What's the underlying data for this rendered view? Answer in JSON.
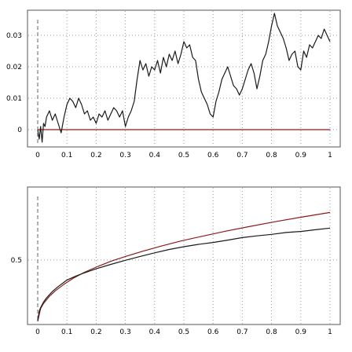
{
  "chart_data": [
    {
      "type": "line",
      "xlim": [
        0,
        1
      ],
      "ylim": [
        -0.0055,
        0.038
      ],
      "xticks": [
        0,
        0.1,
        0.2,
        0.3,
        0.4,
        0.5,
        0.6,
        0.7,
        0.8,
        0.9,
        1
      ],
      "xtick_labels": [
        "0",
        "0.1",
        "0.2",
        "0.3",
        "0.4",
        "0.5",
        "0.6",
        "0.7",
        "0.8",
        "0.9",
        "1"
      ],
      "yticks": [
        0,
        0.01,
        0.02,
        0.03
      ],
      "ytick_labels": [
        "0",
        "0.01",
        "0.02",
        "0.03"
      ],
      "grid": true,
      "colors": {
        "path": "#1a1a1a",
        "reference": "#8b1a1a",
        "grid": "#9a9a9a",
        "frame": "#555555"
      },
      "series": [
        {
          "x": [
            0,
            0.005,
            0.01,
            0.015,
            0.02,
            0.025,
            0.03,
            0.04,
            0.05,
            0.06,
            0.07,
            0.08,
            0.09,
            0.1,
            0.11,
            0.12,
            0.13,
            0.14,
            0.15,
            0.16,
            0.17,
            0.18,
            0.19,
            0.2,
            0.21,
            0.22,
            0.23,
            0.24,
            0.25,
            0.26,
            0.27,
            0.28,
            0.29,
            0.3,
            0.31,
            0.32,
            0.33,
            0.34,
            0.35,
            0.36,
            0.37,
            0.38,
            0.39,
            0.4,
            0.41,
            0.42,
            0.43,
            0.44,
            0.45,
            0.46,
            0.47,
            0.48,
            0.49,
            0.5,
            0.51,
            0.52,
            0.53,
            0.54,
            0.55,
            0.56,
            0.57,
            0.58,
            0.59,
            0.6,
            0.61,
            0.62,
            0.63,
            0.64,
            0.65,
            0.66,
            0.67,
            0.68,
            0.69,
            0.7,
            0.71,
            0.72,
            0.73,
            0.74,
            0.75,
            0.76,
            0.77,
            0.78,
            0.79,
            0.8,
            0.81,
            0.82,
            0.83,
            0.84,
            0.85,
            0.86,
            0.87,
            0.88,
            0.89,
            0.9,
            0.91,
            0.92,
            0.93,
            0.94,
            0.95,
            0.96,
            0.97,
            0.98,
            0.99,
            1.0
          ],
          "values": [
            0,
            -0.003,
            0.001,
            -0.004,
            0.002,
            0.001,
            0.004,
            0.006,
            0.003,
            0.005,
            0.002,
            -0.001,
            0.004,
            0.008,
            0.01,
            0.009,
            0.007,
            0.01,
            0.008,
            0.005,
            0.006,
            0.003,
            0.004,
            0.002,
            0.005,
            0.004,
            0.006,
            0.003,
            0.005,
            0.007,
            0.006,
            0.004,
            0.006,
            0.001,
            0.004,
            0.006,
            0.009,
            0.016,
            0.022,
            0.019,
            0.021,
            0.017,
            0.02,
            0.019,
            0.022,
            0.018,
            0.023,
            0.02,
            0.024,
            0.022,
            0.025,
            0.021,
            0.024,
            0.028,
            0.026,
            0.027,
            0.023,
            0.022,
            0.016,
            0.012,
            0.01,
            0.008,
            0.005,
            0.004,
            0.009,
            0.012,
            0.016,
            0.018,
            0.02,
            0.017,
            0.014,
            0.013,
            0.011,
            0.013,
            0.016,
            0.019,
            0.021,
            0.018,
            0.013,
            0.017,
            0.022,
            0.024,
            0.028,
            0.033,
            0.037,
            0.033,
            0.031,
            0.029,
            0.026,
            0.022,
            0.024,
            0.025,
            0.02,
            0.019,
            0.025,
            0.023,
            0.027,
            0.026,
            0.028,
            0.03,
            0.029,
            0.032,
            0.03,
            0.028
          ]
        },
        {
          "x": [
            0,
            1
          ],
          "values": [
            0,
            0
          ]
        }
      ]
    },
    {
      "type": "line",
      "xlim": [
        0,
        1
      ],
      "ylim": [
        0.12,
        0.93
      ],
      "xticks": [
        0,
        0.1,
        0.2,
        0.3,
        0.4,
        0.5,
        0.6,
        0.7,
        0.8,
        0.9,
        1
      ],
      "xtick_labels": [
        "0",
        "0.1",
        "0.2",
        "0.3",
        "0.4",
        "0.5",
        "0.6",
        "0.7",
        "0.8",
        "0.9",
        "1"
      ],
      "yticks": [
        0.5
      ],
      "ytick_labels": [
        "0.5"
      ],
      "grid": true,
      "colors": {
        "path": "#1a1a1a",
        "reference": "#8b1a1a",
        "grid": "#9a9a9a",
        "frame": "#555555"
      },
      "series": [
        {
          "x": [
            0,
            0.005,
            0.01,
            0.02,
            0.03,
            0.05,
            0.07,
            0.1,
            0.13,
            0.15,
            0.2,
            0.25,
            0.3,
            0.35,
            0.4,
            0.45,
            0.5,
            0.55,
            0.6,
            0.65,
            0.7,
            0.75,
            0.8,
            0.85,
            0.9,
            0.95,
            1.0
          ],
          "values": [
            0.14,
            0.198,
            0.22,
            0.252,
            0.277,
            0.314,
            0.343,
            0.382,
            0.405,
            0.418,
            0.448,
            0.474,
            0.498,
            0.521,
            0.542,
            0.562,
            0.578,
            0.592,
            0.603,
            0.617,
            0.632,
            0.642,
            0.651,
            0.662,
            0.668,
            0.678,
            0.688
          ]
        },
        {
          "x": [
            0,
            0.01,
            0.02,
            0.04,
            0.06,
            0.09,
            0.12,
            0.16,
            0.2,
            0.25,
            0.3,
            0.36,
            0.42,
            0.49,
            0.56,
            0.64,
            0.72,
            0.81,
            0.9,
            1.0
          ],
          "values": [
            0.14,
            0.214,
            0.244,
            0.286,
            0.318,
            0.357,
            0.391,
            0.428,
            0.458,
            0.492,
            0.521,
            0.552,
            0.581,
            0.612,
            0.639,
            0.669,
            0.696,
            0.725,
            0.752,
            0.78
          ]
        }
      ]
    }
  ]
}
